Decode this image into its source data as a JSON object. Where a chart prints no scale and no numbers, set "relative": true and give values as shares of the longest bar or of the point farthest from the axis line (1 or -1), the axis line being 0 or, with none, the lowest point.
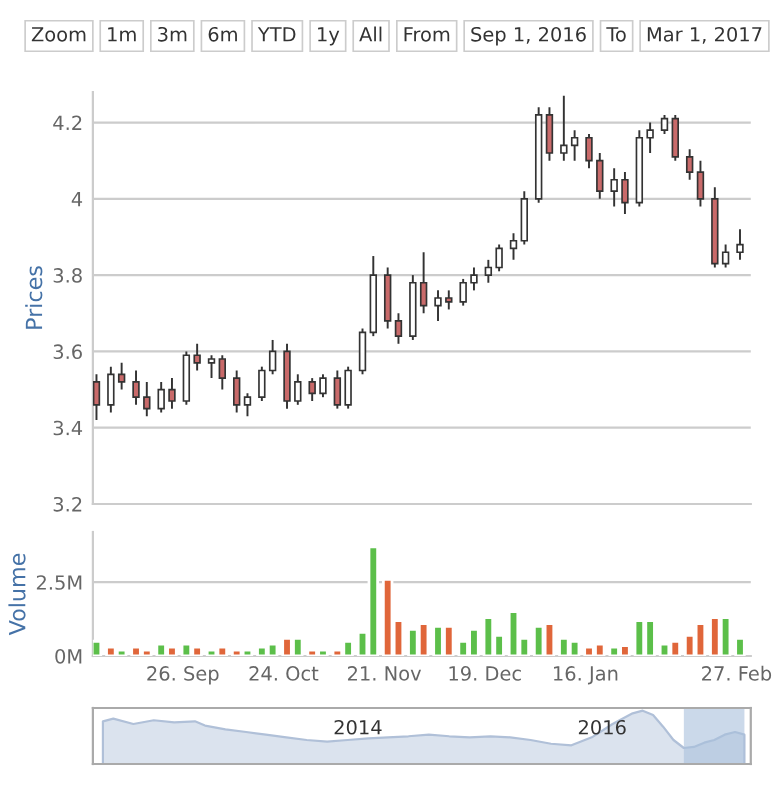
{
  "chart_data": [
    {
      "type": "candlestick",
      "ylabel": "Prices",
      "annotations": [
        "Zoom",
        "1m",
        "3m",
        "6m",
        "YTD",
        "1y",
        "All",
        "From",
        "Sep 1, 2016",
        "To",
        "Mar 1, 2017"
      ],
      "x": [
        "2016-09-02",
        "2016-09-06",
        "2016-09-09",
        "2016-09-13",
        "2016-09-16",
        "2016-09-20",
        "2016-09-23",
        "2016-09-27",
        "2016-09-30",
        "2016-10-04",
        "2016-10-07",
        "2016-10-11",
        "2016-10-14",
        "2016-10-18",
        "2016-10-21",
        "2016-10-25",
        "2016-10-28",
        "2016-11-01",
        "2016-11-04",
        "2016-11-08",
        "2016-11-11",
        "2016-11-15",
        "2016-11-18",
        "2016-11-22",
        "2016-11-25",
        "2016-11-29",
        "2016-12-02",
        "2016-12-06",
        "2016-12-09",
        "2016-12-13",
        "2016-12-16",
        "2016-12-20",
        "2016-12-23",
        "2016-12-27",
        "2016-12-30",
        "2017-01-03",
        "2017-01-06",
        "2017-01-10",
        "2017-01-13",
        "2017-01-17",
        "2017-01-20",
        "2017-01-24",
        "2017-01-27",
        "2017-01-31",
        "2017-02-03",
        "2017-02-07",
        "2017-02-10",
        "2017-02-14",
        "2017-02-17",
        "2017-02-21",
        "2017-02-24",
        "2017-02-28"
      ],
      "ohlc": [
        [
          3.52,
          3.54,
          3.42,
          3.46
        ],
        [
          3.46,
          3.56,
          3.44,
          3.54
        ],
        [
          3.54,
          3.57,
          3.5,
          3.52
        ],
        [
          3.52,
          3.55,
          3.46,
          3.48
        ],
        [
          3.48,
          3.52,
          3.43,
          3.45
        ],
        [
          3.45,
          3.52,
          3.44,
          3.5
        ],
        [
          3.5,
          3.53,
          3.45,
          3.47
        ],
        [
          3.47,
          3.6,
          3.46,
          3.59
        ],
        [
          3.59,
          3.62,
          3.55,
          3.57
        ],
        [
          3.57,
          3.59,
          3.53,
          3.58
        ],
        [
          3.58,
          3.59,
          3.5,
          3.53
        ],
        [
          3.53,
          3.55,
          3.44,
          3.46
        ],
        [
          3.46,
          3.49,
          3.43,
          3.48
        ],
        [
          3.48,
          3.56,
          3.47,
          3.55
        ],
        [
          3.55,
          3.63,
          3.54,
          3.6
        ],
        [
          3.6,
          3.62,
          3.45,
          3.47
        ],
        [
          3.47,
          3.54,
          3.46,
          3.52
        ],
        [
          3.52,
          3.53,
          3.47,
          3.49
        ],
        [
          3.49,
          3.54,
          3.48,
          3.53
        ],
        [
          3.53,
          3.55,
          3.45,
          3.46
        ],
        [
          3.46,
          3.56,
          3.45,
          3.55
        ],
        [
          3.55,
          3.66,
          3.54,
          3.65
        ],
        [
          3.65,
          3.85,
          3.64,
          3.8
        ],
        [
          3.8,
          3.82,
          3.66,
          3.68
        ],
        [
          3.68,
          3.7,
          3.62,
          3.64
        ],
        [
          3.64,
          3.8,
          3.63,
          3.78
        ],
        [
          3.78,
          3.86,
          3.7,
          3.72
        ],
        [
          3.72,
          3.76,
          3.68,
          3.74
        ],
        [
          3.74,
          3.76,
          3.71,
          3.73
        ],
        [
          3.73,
          3.79,
          3.72,
          3.78
        ],
        [
          3.78,
          3.82,
          3.76,
          3.8
        ],
        [
          3.8,
          3.84,
          3.78,
          3.82
        ],
        [
          3.82,
          3.88,
          3.81,
          3.87
        ],
        [
          3.87,
          3.91,
          3.84,
          3.89
        ],
        [
          3.89,
          4.02,
          3.88,
          4.0
        ],
        [
          4.0,
          4.24,
          3.99,
          4.22
        ],
        [
          4.22,
          4.24,
          4.1,
          4.12
        ],
        [
          4.12,
          4.27,
          4.1,
          4.14
        ],
        [
          4.14,
          4.18,
          4.1,
          4.16
        ],
        [
          4.16,
          4.17,
          4.08,
          4.1
        ],
        [
          4.1,
          4.12,
          4.0,
          4.02
        ],
        [
          4.02,
          4.08,
          3.98,
          4.05
        ],
        [
          4.05,
          4.07,
          3.96,
          3.99
        ],
        [
          3.99,
          4.18,
          3.98,
          4.16
        ],
        [
          4.16,
          4.2,
          4.12,
          4.18
        ],
        [
          4.18,
          4.22,
          4.17,
          4.21
        ],
        [
          4.21,
          4.22,
          4.1,
          4.11
        ],
        [
          4.11,
          4.13,
          4.05,
          4.07
        ],
        [
          4.07,
          4.1,
          3.98,
          4.0
        ],
        [
          4.0,
          4.03,
          3.82,
          3.83
        ],
        [
          3.83,
          3.88,
          3.82,
          3.86
        ],
        [
          3.86,
          3.92,
          3.84,
          3.88
        ]
      ],
      "colors": [
        "#c96a6a",
        "#ffffff",
        "#c96a6a",
        "#c96a6a",
        "#c96a6a",
        "#ffffff",
        "#c96a6a",
        "#ffffff",
        "#c96a6a",
        "#ffffff",
        "#c96a6a",
        "#c96a6a",
        "#ffffff",
        "#ffffff",
        "#ffffff",
        "#c96a6a",
        "#ffffff",
        "#c96a6a",
        "#ffffff",
        "#c96a6a",
        "#ffffff",
        "#ffffff",
        "#ffffff",
        "#c96a6a",
        "#c96a6a",
        "#ffffff",
        "#c96a6a",
        "#ffffff",
        "#c96a6a",
        "#ffffff",
        "#ffffff",
        "#ffffff",
        "#ffffff",
        "#ffffff",
        "#ffffff",
        "#ffffff",
        "#c96a6a",
        "#ffffff",
        "#ffffff",
        "#c96a6a",
        "#c96a6a",
        "#ffffff",
        "#c96a6a",
        "#ffffff",
        "#ffffff",
        "#ffffff",
        "#c96a6a",
        "#c96a6a",
        "#c96a6a",
        "#c96a6a",
        "#ffffff",
        "#ffffff"
      ],
      "xlim": [
        "2016-09-01",
        "2017-03-03"
      ],
      "ylim": [
        3.2,
        4.28
      ],
      "yticks": [
        3.2,
        3.4,
        3.6,
        3.8,
        {
          "value": 4,
          "label": "4"
        },
        4.2
      ],
      "grid": "y",
      "tick_labels": "y"
    },
    {
      "type": "bar",
      "ylabel": "Volume",
      "x": [
        "2016-09-02",
        "2016-09-06",
        "2016-09-09",
        "2016-09-13",
        "2016-09-16",
        "2016-09-20",
        "2016-09-23",
        "2016-09-27",
        "2016-09-30",
        "2016-10-04",
        "2016-10-07",
        "2016-10-11",
        "2016-10-14",
        "2016-10-18",
        "2016-10-21",
        "2016-10-25",
        "2016-10-28",
        "2016-11-01",
        "2016-11-04",
        "2016-11-08",
        "2016-11-11",
        "2016-11-15",
        "2016-11-18",
        "2016-11-22",
        "2016-11-25",
        "2016-11-29",
        "2016-12-02",
        "2016-12-06",
        "2016-12-09",
        "2016-12-13",
        "2016-12-16",
        "2016-12-20",
        "2016-12-23",
        "2016-12-27",
        "2016-12-30",
        "2017-01-03",
        "2017-01-06",
        "2017-01-10",
        "2017-01-13",
        "2017-01-17",
        "2017-01-20",
        "2017-01-24",
        "2017-01-27",
        "2017-01-31",
        "2017-02-03",
        "2017-02-07",
        "2017-02-10",
        "2017-02-14",
        "2017-02-17",
        "2017-02-21",
        "2017-02-24",
        "2017-02-28"
      ],
      "values": [
        0.5,
        0.3,
        0.2,
        0.3,
        0.2,
        0.4,
        0.3,
        0.4,
        0.3,
        0.2,
        0.3,
        0.2,
        0.2,
        0.3,
        0.4,
        0.6,
        0.6,
        0.2,
        0.2,
        0.2,
        0.5,
        0.8,
        3.7,
        2.6,
        1.2,
        0.9,
        1.1,
        1.0,
        1.0,
        0.5,
        0.9,
        1.3,
        0.7,
        1.5,
        0.6,
        1.0,
        1.1,
        0.6,
        0.5,
        0.3,
        0.4,
        0.3,
        0.35,
        1.2,
        1.2,
        0.4,
        0.5,
        0.7,
        1.1,
        1.3,
        1.3,
        0.6
      ],
      "colors": [
        "#5cbf4a",
        "#e0663a",
        "#5cbf4a",
        "#e0663a",
        "#e0663a",
        "#5cbf4a",
        "#e0663a",
        "#5cbf4a",
        "#e0663a",
        "#5cbf4a",
        "#e0663a",
        "#e0663a",
        "#5cbf4a",
        "#5cbf4a",
        "#5cbf4a",
        "#e0663a",
        "#5cbf4a",
        "#e0663a",
        "#5cbf4a",
        "#e0663a",
        "#5cbf4a",
        "#5cbf4a",
        "#5cbf4a",
        "#e0663a",
        "#e0663a",
        "#5cbf4a",
        "#e0663a",
        "#5cbf4a",
        "#e0663a",
        "#5cbf4a",
        "#5cbf4a",
        "#5cbf4a",
        "#5cbf4a",
        "#5cbf4a",
        "#5cbf4a",
        "#5cbf4a",
        "#e0663a",
        "#5cbf4a",
        "#5cbf4a",
        "#e0663a",
        "#e0663a",
        "#5cbf4a",
        "#e0663a",
        "#5cbf4a",
        "#5cbf4a",
        "#5cbf4a",
        "#e0663a",
        "#e0663a",
        "#e0663a",
        "#e0663a",
        "#5cbf4a",
        "#5cbf4a"
      ],
      "xlim": [
        "2016-09-01",
        "2017-03-03"
      ],
      "ylim": [
        0,
        4.2
      ],
      "yticks": [
        {
          "value": 0,
          "label": "0M"
        },
        {
          "value": 2.5,
          "label": "2.5M"
        }
      ],
      "xticks": [
        {
          "value": "2016-09-26",
          "label": "26. Sep"
        },
        {
          "value": "2016-10-24",
          "label": "24. Oct"
        },
        {
          "value": "2016-11-21",
          "label": "21. Nov"
        },
        {
          "value": "2016-12-19",
          "label": "19. Dec"
        },
        {
          "value": "2017-01-16",
          "label": "16. Jan"
        },
        {
          "value": "2017-02-27",
          "label": "27. Feb"
        }
      ],
      "grid": "y"
    },
    {
      "type": "area",
      "relative": true,
      "x": [
        "2011-12",
        "2012-01",
        "2012-03",
        "2012-05",
        "2012-07",
        "2012-09",
        "2012-10",
        "2012-12",
        "2013-02",
        "2013-04",
        "2013-06",
        "2013-08",
        "2013-10",
        "2013-12",
        "2014-02",
        "2014-04",
        "2014-06",
        "2014-08",
        "2014-10",
        "2014-12",
        "2015-02",
        "2015-04",
        "2015-06",
        "2015-08",
        "2015-10",
        "2015-12",
        "2016-02",
        "2016-04",
        "2016-05",
        "2016-06",
        "2016-07",
        "2016-08",
        "2016-09",
        "2016-10",
        "2016-11",
        "2016-12",
        "2017-01",
        "2017-02",
        "2017-03"
      ],
      "series": [
        {
          "color": "#dbe3ee",
          "values": [
            0.8,
            0.85,
            0.75,
            0.82,
            0.78,
            0.8,
            0.72,
            0.65,
            0.6,
            0.55,
            0.5,
            0.45,
            0.42,
            0.45,
            0.48,
            0.5,
            0.52,
            0.55,
            0.52,
            0.5,
            0.52,
            0.5,
            0.45,
            0.38,
            0.35,
            0.5,
            0.75,
            0.95,
            1.0,
            0.92,
            0.7,
            0.45,
            0.3,
            0.32,
            0.4,
            0.45,
            0.55,
            0.6,
            0.55
          ]
        }
      ],
      "bands": [
        {
          "axis": "x",
          "from": "2016-09-01",
          "to": "2017-03-01",
          "color": "#a9bfdc"
        }
      ],
      "xlim": [
        "2011-11",
        "2017-03-20"
      ],
      "xticks": [
        {
          "value": "2014-01-01",
          "label": "2014"
        },
        {
          "value": "2016-01-01",
          "label": "2016"
        }
      ]
    }
  ]
}
